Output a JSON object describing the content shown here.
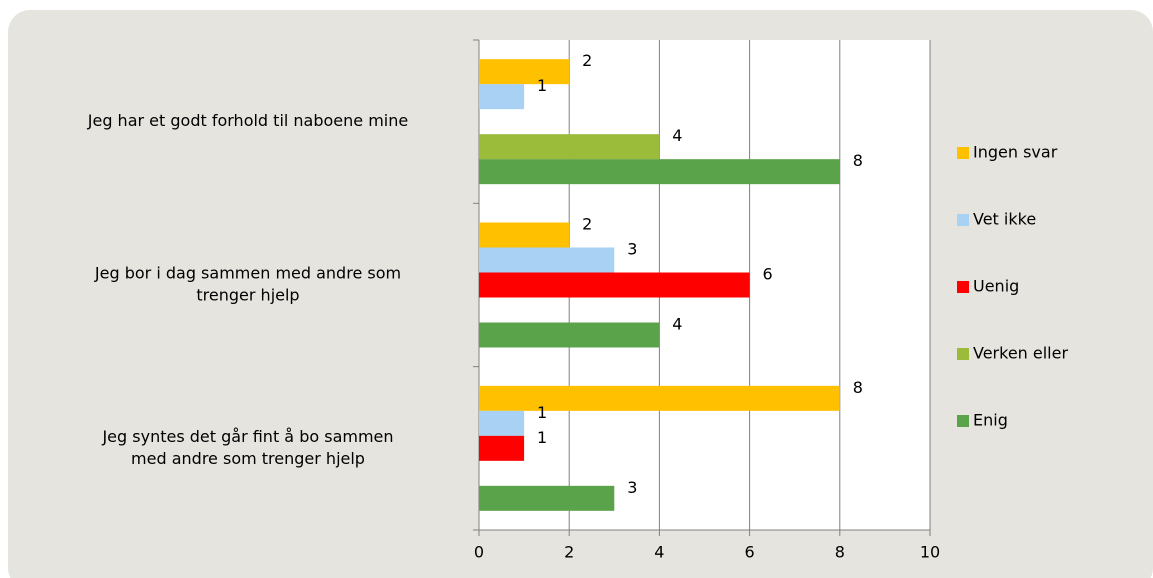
{
  "chart_data": {
    "type": "bar",
    "orientation": "horizontal",
    "categories": [
      [
        "Jeg har et godt forhold til naboene mine"
      ],
      [
        "Jeg bor i dag sammen med andre som",
        "trenger hjelp"
      ],
      [
        "Jeg syntes det går fint å bo sammen",
        "med andre som trenger hjelp"
      ]
    ],
    "series": [
      {
        "name": "Ingen svar",
        "color": "#ffc000",
        "values": [
          2,
          2,
          8
        ]
      },
      {
        "name": "Vet ikke",
        "color": "#a9d1f3",
        "values": [
          1,
          3,
          1
        ]
      },
      {
        "name": "Uenig",
        "color": "#ff0000",
        "values": [
          null,
          6,
          1
        ]
      },
      {
        "name": "Verken eller",
        "color": "#9bbb3b",
        "values": [
          4,
          null,
          null
        ]
      },
      {
        "name": "Enig",
        "color": "#5ba34a",
        "values": [
          8,
          4,
          3
        ]
      }
    ],
    "xlim": [
      0,
      10
    ],
    "xticks": [
      0,
      2,
      4,
      6,
      8,
      10
    ],
    "grid": true,
    "legend": "right"
  }
}
